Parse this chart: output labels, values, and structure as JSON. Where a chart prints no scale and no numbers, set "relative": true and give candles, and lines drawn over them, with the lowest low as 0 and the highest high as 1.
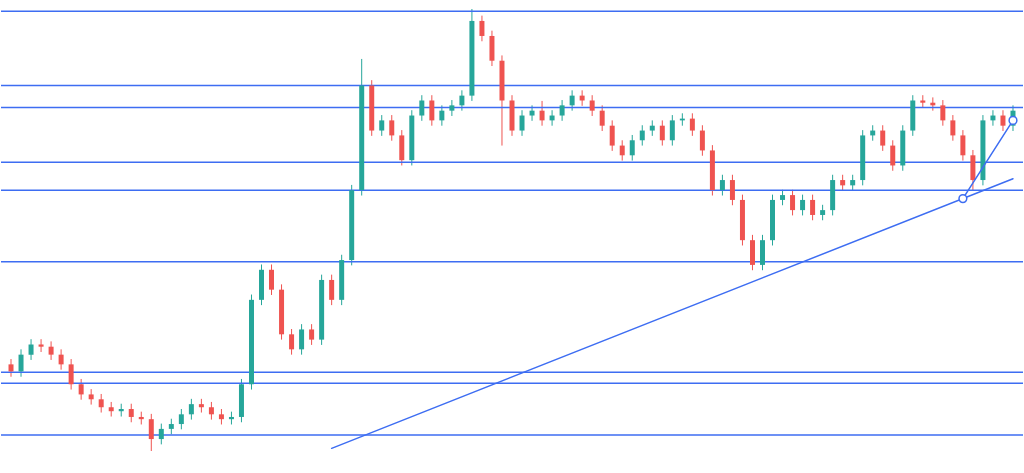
{
  "chart_data": {
    "type": "candlestick",
    "relative": true,
    "categories": [
      null,
      null,
      null,
      null,
      null,
      null,
      null,
      null,
      null,
      null,
      null,
      null,
      null,
      null,
      null,
      null,
      null,
      null,
      null,
      null,
      null,
      null,
      null,
      null,
      null,
      null,
      null,
      null,
      null,
      null,
      null,
      null,
      null,
      null,
      null,
      null,
      null,
      null,
      null,
      null,
      null,
      null,
      null,
      null,
      null,
      null,
      null,
      null,
      null,
      null,
      null,
      null,
      null,
      null,
      null,
      null,
      null,
      null,
      null,
      null,
      null,
      null,
      null,
      null,
      null,
      null,
      null,
      null,
      null,
      null,
      null,
      null,
      null,
      null,
      null,
      null,
      null,
      null,
      null,
      null,
      null,
      null,
      null,
      null,
      null,
      null,
      null,
      null,
      null,
      null,
      null,
      null,
      null,
      null,
      null,
      null,
      null,
      null,
      null,
      null,
      null
    ],
    "ohlc": [
      [
        0.196,
        0.208,
        0.168,
        0.18
      ],
      [
        0.18,
        0.23,
        0.168,
        0.218
      ],
      [
        0.218,
        0.253,
        0.206,
        0.241
      ],
      [
        0.241,
        0.253,
        0.224,
        0.236
      ],
      [
        0.236,
        0.248,
        0.206,
        0.218
      ],
      [
        0.218,
        0.23,
        0.184,
        0.196
      ],
      [
        0.196,
        0.208,
        0.139,
        0.151
      ],
      [
        0.151,
        0.163,
        0.116,
        0.128
      ],
      [
        0.128,
        0.14,
        0.105,
        0.117
      ],
      [
        0.117,
        0.129,
        0.087,
        0.099
      ],
      [
        0.099,
        0.111,
        0.078,
        0.09
      ],
      [
        0.09,
        0.107,
        0.078,
        0.095
      ],
      [
        0.095,
        0.107,
        0.065,
        0.077
      ],
      [
        0.077,
        0.089,
        0.06,
        0.072
      ],
      [
        0.072,
        0.084,
        0.0,
        0.027
      ],
      [
        0.027,
        0.062,
        0.015,
        0.05
      ],
      [
        0.05,
        0.073,
        0.038,
        0.061
      ],
      [
        0.061,
        0.095,
        0.049,
        0.083
      ],
      [
        0.083,
        0.118,
        0.071,
        0.106
      ],
      [
        0.106,
        0.118,
        0.087,
        0.099
      ],
      [
        0.099,
        0.111,
        0.071,
        0.083
      ],
      [
        0.083,
        0.095,
        0.06,
        0.072
      ],
      [
        0.072,
        0.089,
        0.06,
        0.077
      ],
      [
        0.077,
        0.163,
        0.065,
        0.151
      ],
      [
        0.151,
        0.354,
        0.139,
        0.342
      ],
      [
        0.342,
        0.422,
        0.33,
        0.41
      ],
      [
        0.41,
        0.422,
        0.353,
        0.365
      ],
      [
        0.365,
        0.377,
        0.252,
        0.264
      ],
      [
        0.264,
        0.276,
        0.218,
        0.23
      ],
      [
        0.23,
        0.287,
        0.218,
        0.275
      ],
      [
        0.275,
        0.287,
        0.24,
        0.252
      ],
      [
        0.252,
        0.399,
        0.24,
        0.387
      ],
      [
        0.387,
        0.399,
        0.33,
        0.342
      ],
      [
        0.342,
        0.444,
        0.33,
        0.432
      ],
      [
        0.432,
        0.602,
        0.42,
        0.59
      ],
      [
        0.59,
        0.887,
        0.578,
        0.827
      ],
      [
        0.827,
        0.839,
        0.713,
        0.725
      ],
      [
        0.725,
        0.76,
        0.713,
        0.748
      ],
      [
        0.748,
        0.76,
        0.702,
        0.714
      ],
      [
        0.714,
        0.726,
        0.646,
        0.658
      ],
      [
        0.658,
        0.771,
        0.646,
        0.759
      ],
      [
        0.759,
        0.805,
        0.747,
        0.793
      ],
      [
        0.793,
        0.805,
        0.736,
        0.748
      ],
      [
        0.748,
        0.782,
        0.736,
        0.77
      ],
      [
        0.77,
        0.794,
        0.758,
        0.782
      ],
      [
        0.782,
        0.816,
        0.77,
        0.804
      ],
      [
        0.804,
        1.0,
        0.792,
        0.973
      ],
      [
        0.973,
        0.985,
        0.927,
        0.939
      ],
      [
        0.939,
        0.951,
        0.871,
        0.883
      ],
      [
        0.883,
        0.895,
        0.691,
        0.793
      ],
      [
        0.793,
        0.805,
        0.713,
        0.725
      ],
      [
        0.725,
        0.771,
        0.713,
        0.759
      ],
      [
        0.759,
        0.782,
        0.747,
        0.77
      ],
      [
        0.77,
        0.792,
        0.736,
        0.748
      ],
      [
        0.748,
        0.771,
        0.736,
        0.759
      ],
      [
        0.759,
        0.794,
        0.747,
        0.782
      ],
      [
        0.782,
        0.816,
        0.77,
        0.804
      ],
      [
        0.804,
        0.816,
        0.781,
        0.793
      ],
      [
        0.793,
        0.805,
        0.758,
        0.77
      ],
      [
        0.77,
        0.782,
        0.724,
        0.736
      ],
      [
        0.736,
        0.748,
        0.679,
        0.691
      ],
      [
        0.691,
        0.703,
        0.657,
        0.669
      ],
      [
        0.669,
        0.715,
        0.657,
        0.703
      ],
      [
        0.703,
        0.737,
        0.691,
        0.725
      ],
      [
        0.725,
        0.748,
        0.713,
        0.736
      ],
      [
        0.736,
        0.748,
        0.691,
        0.703
      ],
      [
        0.703,
        0.76,
        0.691,
        0.748
      ],
      [
        0.748,
        0.764,
        0.736,
        0.752
      ],
      [
        0.752,
        0.764,
        0.713,
        0.725
      ],
      [
        0.725,
        0.737,
        0.668,
        0.68
      ],
      [
        0.68,
        0.692,
        0.578,
        0.59
      ],
      [
        0.59,
        0.625,
        0.578,
        0.613
      ],
      [
        0.613,
        0.625,
        0.556,
        0.568
      ],
      [
        0.568,
        0.58,
        0.465,
        0.477
      ],
      [
        0.477,
        0.489,
        0.409,
        0.421
      ],
      [
        0.421,
        0.489,
        0.409,
        0.477
      ],
      [
        0.477,
        0.58,
        0.465,
        0.568
      ],
      [
        0.568,
        0.591,
        0.556,
        0.579
      ],
      [
        0.579,
        0.591,
        0.533,
        0.545
      ],
      [
        0.545,
        0.58,
        0.533,
        0.568
      ],
      [
        0.568,
        0.58,
        0.522,
        0.534
      ],
      [
        0.534,
        0.557,
        0.522,
        0.545
      ],
      [
        0.545,
        0.625,
        0.533,
        0.613
      ],
      [
        0.613,
        0.625,
        0.589,
        0.601
      ],
      [
        0.601,
        0.625,
        0.589,
        0.613
      ],
      [
        0.613,
        0.726,
        0.601,
        0.714
      ],
      [
        0.714,
        0.737,
        0.702,
        0.725
      ],
      [
        0.725,
        0.737,
        0.679,
        0.691
      ],
      [
        0.691,
        0.703,
        0.634,
        0.646
      ],
      [
        0.646,
        0.737,
        0.634,
        0.725
      ],
      [
        0.725,
        0.805,
        0.713,
        0.793
      ],
      [
        0.793,
        0.805,
        0.776,
        0.788
      ],
      [
        0.788,
        0.8,
        0.77,
        0.782
      ],
      [
        0.782,
        0.794,
        0.736,
        0.748
      ],
      [
        0.748,
        0.76,
        0.702,
        0.714
      ],
      [
        0.714,
        0.726,
        0.657,
        0.669
      ],
      [
        0.669,
        0.681,
        0.59,
        0.613
      ],
      [
        0.613,
        0.76,
        0.601,
        0.748
      ],
      [
        0.748,
        0.771,
        0.736,
        0.759
      ],
      [
        0.759,
        0.771,
        0.724,
        0.736
      ],
      [
        0.736,
        0.782,
        0.724,
        0.77
      ]
    ],
    "colors": [
      "#ef5350",
      "#26a69a",
      "#26a69a",
      "#ef5350",
      "#ef5350",
      "#ef5350",
      "#ef5350",
      "#ef5350",
      "#ef5350",
      "#ef5350",
      "#ef5350",
      "#26a69a",
      "#ef5350",
      "#ef5350",
      "#ef5350",
      "#26a69a",
      "#26a69a",
      "#26a69a",
      "#26a69a",
      "#ef5350",
      "#ef5350",
      "#ef5350",
      "#26a69a",
      "#26a69a",
      "#26a69a",
      "#26a69a",
      "#ef5350",
      "#ef5350",
      "#ef5350",
      "#26a69a",
      "#ef5350",
      "#26a69a",
      "#ef5350",
      "#26a69a",
      "#26a69a",
      "#26a69a",
      "#ef5350",
      "#26a69a",
      "#ef5350",
      "#ef5350",
      "#26a69a",
      "#26a69a",
      "#ef5350",
      "#26a69a",
      "#26a69a",
      "#26a69a",
      "#26a69a",
      "#ef5350",
      "#ef5350",
      "#ef5350",
      "#ef5350",
      "#26a69a",
      "#26a69a",
      "#ef5350",
      "#26a69a",
      "#26a69a",
      "#26a69a",
      "#ef5350",
      "#ef5350",
      "#ef5350",
      "#ef5350",
      "#ef5350",
      "#26a69a",
      "#26a69a",
      "#26a69a",
      "#ef5350",
      "#26a69a",
      "#26a69a",
      "#ef5350",
      "#ef5350",
      "#ef5350",
      "#26a69a",
      "#ef5350",
      "#ef5350",
      "#ef5350",
      "#26a69a",
      "#26a69a",
      "#26a69a",
      "#ef5350",
      "#26a69a",
      "#ef5350",
      "#26a69a",
      "#26a69a",
      "#ef5350",
      "#26a69a",
      "#26a69a",
      "#26a69a",
      "#ef5350",
      "#ef5350",
      "#26a69a",
      "#26a69a",
      "#ef5350",
      "#ef5350",
      "#ef5350",
      "#ef5350",
      "#ef5350",
      "#ef5350",
      "#26a69a",
      "#26a69a",
      "#ef5350",
      "#26a69a"
    ],
    "series": [
      {
        "type": "line",
        "color": "#3d6df2",
        "values": [
          null,
          null,
          null,
          null,
          null,
          null,
          null,
          null,
          null,
          null,
          null,
          null,
          null,
          null,
          null,
          null,
          null,
          null,
          null,
          null,
          null,
          null,
          null,
          null,
          null,
          null,
          null,
          null,
          null,
          null,
          null,
          null,
          0.006,
          null,
          null,
          null,
          null,
          null,
          null,
          null,
          null,
          null,
          null,
          null,
          null,
          null,
          null,
          null,
          null,
          null,
          null,
          null,
          null,
          null,
          null,
          null,
          null,
          null,
          null,
          null,
          null,
          null,
          null,
          null,
          null,
          null,
          null,
          null,
          null,
          null,
          null,
          null,
          null,
          null,
          null,
          null,
          null,
          null,
          null,
          null,
          null,
          null,
          null,
          null,
          null,
          null,
          null,
          null,
          null,
          null,
          null,
          null,
          null,
          null,
          null,
          null,
          null,
          null,
          null,
          null,
          0.616
        ]
      },
      {
        "type": "line",
        "color": "#3d6df2",
        "marker": "circle",
        "values": [
          null,
          null,
          null,
          null,
          null,
          null,
          null,
          null,
          null,
          null,
          null,
          null,
          null,
          null,
          null,
          null,
          null,
          null,
          null,
          null,
          null,
          null,
          null,
          null,
          null,
          null,
          null,
          null,
          null,
          null,
          null,
          null,
          null,
          null,
          null,
          null,
          null,
          null,
          null,
          null,
          null,
          null,
          null,
          null,
          null,
          null,
          null,
          null,
          null,
          null,
          null,
          null,
          null,
          null,
          null,
          null,
          null,
          null,
          null,
          null,
          null,
          null,
          null,
          null,
          null,
          null,
          null,
          null,
          null,
          null,
          null,
          null,
          null,
          null,
          null,
          null,
          null,
          null,
          null,
          null,
          null,
          null,
          null,
          null,
          null,
          null,
          null,
          null,
          null,
          null,
          null,
          null,
          null,
          null,
          null,
          0.571,
          null,
          null,
          null,
          null,
          0.748
        ]
      }
    ],
    "ref_lines": [
      {
        "axis": "y",
        "value": 0.995,
        "color": "#3d6df2"
      },
      {
        "axis": "y",
        "value": 0.827,
        "color": "#3d6df2"
      },
      {
        "axis": "y",
        "value": 0.777,
        "color": "#3d6df2"
      },
      {
        "axis": "y",
        "value": 0.653,
        "color": "#3d6df2"
      },
      {
        "axis": "y",
        "value": 0.59,
        "color": "#3d6df2"
      },
      {
        "axis": "y",
        "value": 0.428,
        "color": "#3d6df2"
      },
      {
        "axis": "y",
        "value": 0.178,
        "color": "#3d6df2"
      },
      {
        "axis": "y",
        "value": 0.153,
        "color": "#3d6df2"
      },
      {
        "axis": "y",
        "value": 0.036,
        "color": "#3d6df2"
      }
    ]
  }
}
